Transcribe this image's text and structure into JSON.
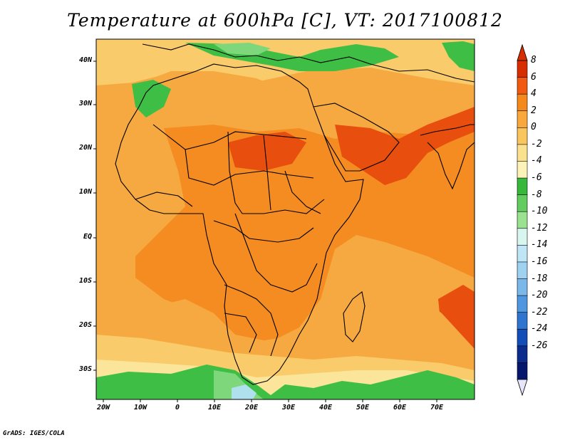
{
  "title": "Temperature at 600hPa [C], VT: 2017100812",
  "footer": "GrADS: IGES/COLA",
  "lat_labels": [
    "40N",
    "30N",
    "20N",
    "10N",
    "EQ",
    "10S",
    "20S",
    "30S"
  ],
  "lon_labels": [
    "20W",
    "10W",
    "0",
    "10E",
    "20E",
    "30E",
    "40E",
    "50E",
    "60E",
    "70E"
  ],
  "colorbar": {
    "labels": [
      "8",
      "6",
      "4",
      "2",
      "0",
      "-2",
      "-4",
      "-6",
      "-8",
      "-10",
      "-12",
      "-14",
      "-16",
      "-18",
      "-20",
      "-22",
      "-24",
      "-26"
    ],
    "colors": [
      "#d62e00",
      "#f25a12",
      "#f6891c",
      "#f9a93c",
      "#f9c65e",
      "#fbe08e",
      "#fdf3b8",
      "#37b83c",
      "#62cc5f",
      "#9ae290",
      "#d9f5f0",
      "#bfe6f6",
      "#9fd1f1",
      "#7bb8ea",
      "#5197df",
      "#2f75cf",
      "#134db8",
      "#0b2b8d",
      "#05176d"
    ],
    "top_arrow": "#d62e00",
    "bottom_arrow": "#e6e6fb"
  },
  "map_colors": {
    "warm_red": "#e84e0e",
    "orange": "#f58c22",
    "light_orange": "#f6a940",
    "tan": "#f9cb6a",
    "cream": "#fbe59a",
    "green": "#3fbe45",
    "light_green": "#7fd77b",
    "pale_blue": "#aee0ee"
  }
}
